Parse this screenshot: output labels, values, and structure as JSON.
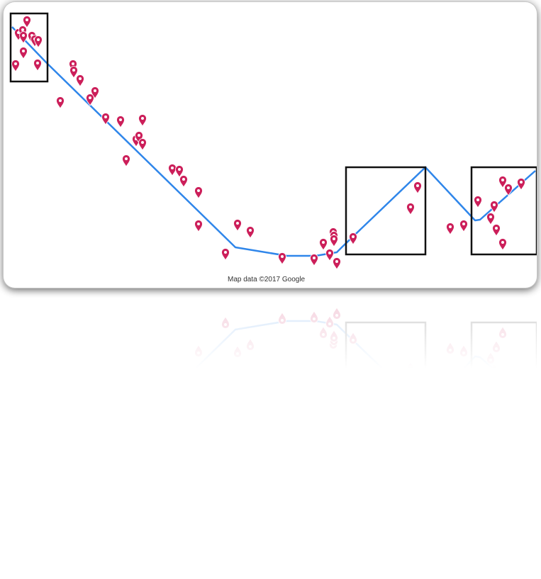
{
  "map": {
    "attribution": "Map data ©2017 Google",
    "route_color": "#2f86ea",
    "marker_color": "#cc1f5a",
    "box_color": "#111111",
    "marker_count": 58,
    "highlight_box_count": 3
  }
}
